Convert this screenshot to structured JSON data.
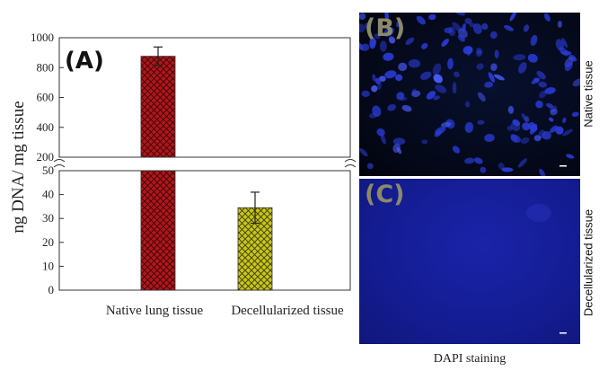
{
  "panel_a_label": "(A)",
  "panel_b_label": "(B)",
  "panel_c_label": "(C)",
  "panel_b_side_label": "Native tissue",
  "panel_c_side_label": "Decellularized tissue",
  "image_caption": "DAPI staining",
  "colors": {
    "native_bar": "#b0161a",
    "decell_bar": "#c8c41a",
    "micro_b_nuclei": "#2a3cd8",
    "micro_c_bg": "#141c92"
  },
  "chart_data": {
    "type": "bar",
    "title": "",
    "xlabel": "",
    "ylabel": "ng DNA/ mg tissue",
    "axis_break": true,
    "categories": [
      "Native lung tissue",
      "Decellularized tissue"
    ],
    "values": [
      876,
      34.5
    ],
    "error": [
      62,
      6.5
    ],
    "upper_segment": {
      "ylim": [
        200,
        1000
      ],
      "ticks": [
        200,
        400,
        600,
        800,
        1000
      ]
    },
    "lower_segment": {
      "ylim": [
        0,
        50
      ],
      "ticks": [
        0,
        10,
        20,
        30,
        40,
        50
      ]
    },
    "grid": false,
    "legend": "none"
  }
}
